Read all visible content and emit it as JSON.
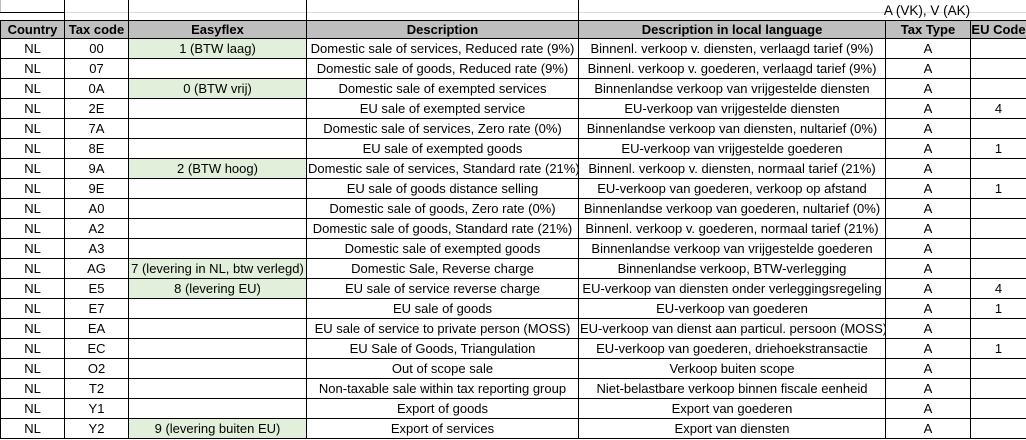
{
  "top": {
    "annotation": "A (VK), V (AK)"
  },
  "colors": {
    "header_bg": "#bfbfbf",
    "easyflex_highlight_bg": "#e2efda",
    "grid_border": "#000000"
  },
  "table": {
    "headers": [
      "Country",
      "Tax code",
      "Easyflex",
      "Description",
      "Description in local language",
      "Tax Type",
      "EU Code"
    ],
    "rows": [
      {
        "country": "NL",
        "tax_code": "00",
        "easyflex": "1 (BTW laag)",
        "description": "Domestic sale of services, Reduced rate (9%)",
        "local_description": "Binnenl. verkoop v. diensten, verlaagd tarief (9%)",
        "tax_type": "A",
        "eu_code": ""
      },
      {
        "country": "NL",
        "tax_code": "07",
        "easyflex": "",
        "description": "Domestic sale of goods, Reduced rate (9%)",
        "local_description": "Binnenl. verkoop v. goederen, verlaagd tarief (9%)",
        "tax_type": "A",
        "eu_code": ""
      },
      {
        "country": "NL",
        "tax_code": "0A",
        "easyflex": "0 (BTW vrij)",
        "description": "Domestic sale of exempted services",
        "local_description": "Binnenlandse verkoop van vrijgestelde diensten",
        "tax_type": "A",
        "eu_code": ""
      },
      {
        "country": "NL",
        "tax_code": "2E",
        "easyflex": "",
        "description": "EU sale of exempted service",
        "local_description": "EU-verkoop van vrijgestelde diensten",
        "tax_type": "A",
        "eu_code": "4"
      },
      {
        "country": "NL",
        "tax_code": "7A",
        "easyflex": "",
        "description": "Domestic sale of services, Zero rate (0%)",
        "local_description": "Binnenlandse verkoop van diensten, nultarief (0%)",
        "tax_type": "A",
        "eu_code": ""
      },
      {
        "country": "NL",
        "tax_code": "8E",
        "easyflex": "",
        "description": "EU sale of exempted goods",
        "local_description": "EU-verkoop van vrijgestelde goederen",
        "tax_type": "A",
        "eu_code": "1"
      },
      {
        "country": "NL",
        "tax_code": "9A",
        "easyflex": "2 (BTW hoog)",
        "description": "Domestic sale of services, Standard rate (21%)",
        "local_description": "Binnenl. verkoop v. diensten, normaal tarief (21%)",
        "tax_type": "A",
        "eu_code": ""
      },
      {
        "country": "NL",
        "tax_code": "9E",
        "easyflex": "",
        "description": "EU sale of goods distance selling",
        "local_description": "EU-verkoop van goederen, verkoop op afstand",
        "tax_type": "A",
        "eu_code": "1"
      },
      {
        "country": "NL",
        "tax_code": "A0",
        "easyflex": "",
        "description": "Domestic sale of goods, Zero rate (0%)",
        "local_description": "Binnenlandse verkoop van goederen, nultarief (0%)",
        "tax_type": "A",
        "eu_code": ""
      },
      {
        "country": "NL",
        "tax_code": "A2",
        "easyflex": "",
        "description": "Domestic sale of goods, Standard rate (21%)",
        "local_description": "Binnenl. verkoop v. goederen, normaal tarief (21%)",
        "tax_type": "A",
        "eu_code": ""
      },
      {
        "country": "NL",
        "tax_code": "A3",
        "easyflex": "",
        "description": "Domestic sale of exempted goods",
        "local_description": "Binnenlandse verkoop van vrijgestelde goederen",
        "tax_type": "A",
        "eu_code": ""
      },
      {
        "country": "NL",
        "tax_code": "AG",
        "easyflex": "7 (levering in NL, btw verlegd)",
        "description": "Domestic Sale, Reverse charge",
        "local_description": "Binnenlandse verkoop, BTW-verlegging",
        "tax_type": "A",
        "eu_code": ""
      },
      {
        "country": "NL",
        "tax_code": "E5",
        "easyflex": "8 (levering EU)",
        "description": "EU sale of service reverse charge",
        "local_description": "EU-verkoop van diensten onder verleggingsregeling",
        "tax_type": "A",
        "eu_code": "4"
      },
      {
        "country": "NL",
        "tax_code": "E7",
        "easyflex": "",
        "description": "EU sale of goods",
        "local_description": "EU-verkoop van goederen",
        "tax_type": "A",
        "eu_code": "1"
      },
      {
        "country": "NL",
        "tax_code": "EA",
        "easyflex": "",
        "description": "EU sale of service to private person (MOSS)",
        "local_description": "EU-verkoop van dienst aan particul. persoon (MOSS)",
        "tax_type": "A",
        "eu_code": ""
      },
      {
        "country": "NL",
        "tax_code": "EC",
        "easyflex": "",
        "description": "EU Sale of Goods, Triangulation",
        "local_description": "EU-verkoop van goederen, driehoekstransactie",
        "tax_type": "A",
        "eu_code": "1"
      },
      {
        "country": "NL",
        "tax_code": "O2",
        "easyflex": "",
        "description": "Out of scope sale",
        "local_description": "Verkoop buiten scope",
        "tax_type": "A",
        "eu_code": ""
      },
      {
        "country": "NL",
        "tax_code": "T2",
        "easyflex": "",
        "description": "Non-taxable sale within tax reporting group",
        "local_description": "Niet-belastbare verkoop binnen fiscale eenheid",
        "tax_type": "A",
        "eu_code": ""
      },
      {
        "country": "NL",
        "tax_code": "Y1",
        "easyflex": "",
        "description": "Export of goods",
        "local_description": "Export van goederen",
        "tax_type": "A",
        "eu_code": ""
      },
      {
        "country": "NL",
        "tax_code": "Y2",
        "easyflex": "9 (levering buiten EU)",
        "description": "Export of services",
        "local_description": "Export van diensten",
        "tax_type": "A",
        "eu_code": ""
      }
    ]
  }
}
